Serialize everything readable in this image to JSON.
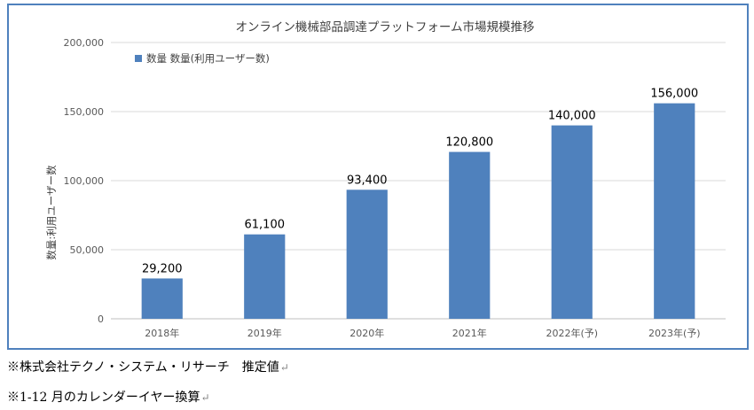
{
  "chart_data": {
    "type": "bar",
    "title": "オンライン機械部品調達プラットフォーム市場規模推移",
    "categories": [
      "2018年",
      "2019年",
      "2020年",
      "2021年",
      "2022年(予)",
      "2023年(予)"
    ],
    "series": [
      {
        "name": "数量 数量(利用ユーザー数)",
        "values": [
          29200,
          61100,
          93400,
          120800,
          140000,
          156000
        ]
      }
    ],
    "data_labels": [
      "29,200",
      "61,100",
      "93,400",
      "120,800",
      "140,000",
      "156,000"
    ],
    "ylabel": "数量:利用ユーザー数",
    "xlabel": "",
    "ylim": [
      0,
      200000
    ],
    "yticks": [
      0,
      50000,
      100000,
      150000,
      200000
    ],
    "ytick_labels": [
      "0",
      "50,000",
      "100,000",
      "150,000",
      "200,000"
    ],
    "grid": true,
    "legend_position": "top-left",
    "bar_color": "#4f81bd",
    "grid_color": "#d9d9d9"
  },
  "notes": [
    "※株式会社テクノ・システム・リサーチ　推定値",
    "※1-12 月のカレンダーイヤー換算"
  ],
  "return_mark": "↵"
}
